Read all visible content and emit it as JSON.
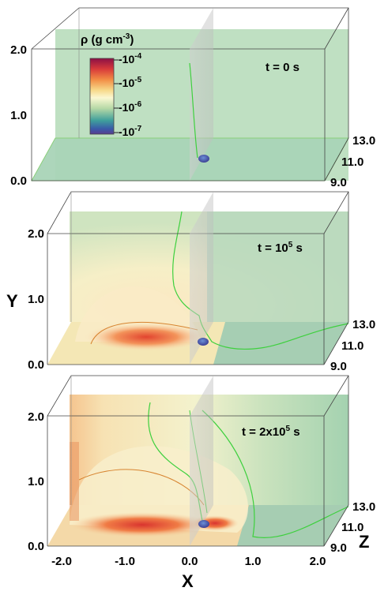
{
  "colorbar": {
    "label_main": "ρ (g cm",
    "label_exp": "-3",
    "label_close": ")",
    "ticks": [
      {
        "base": "10",
        "exp": "-4"
      },
      {
        "base": "10",
        "exp": "-5"
      },
      {
        "base": "10",
        "exp": "-6"
      },
      {
        "base": "10",
        "exp": "-7"
      }
    ],
    "colors": [
      "#8b1045",
      "#d83a3a",
      "#f28d45",
      "#f7d98a",
      "#fbf8d2",
      "#b6d8a6",
      "#3f9f9c",
      "#3a5aa8",
      "#5a3f8f"
    ]
  },
  "axes": {
    "y_title": "Y",
    "x_title": "X",
    "z_title": "Z",
    "y_ticks": [
      "0.0",
      "1.0",
      "2.0"
    ],
    "x_ticks": [
      "-2.0",
      "-1.0",
      "0.0",
      "1.0",
      "2.0"
    ],
    "z_ticks": [
      "9.0",
      "11.0",
      "13.0"
    ]
  },
  "panels": [
    {
      "time_prefix": "t = 0 s",
      "time_base": "",
      "time_exp": "",
      "time_suffix": ""
    },
    {
      "time_prefix": "t = 10",
      "time_base": "",
      "time_exp": "5",
      "time_suffix": " s"
    },
    {
      "time_prefix": "t = 2x10",
      "time_base": "",
      "time_exp": "5",
      "time_suffix": " s"
    }
  ]
}
